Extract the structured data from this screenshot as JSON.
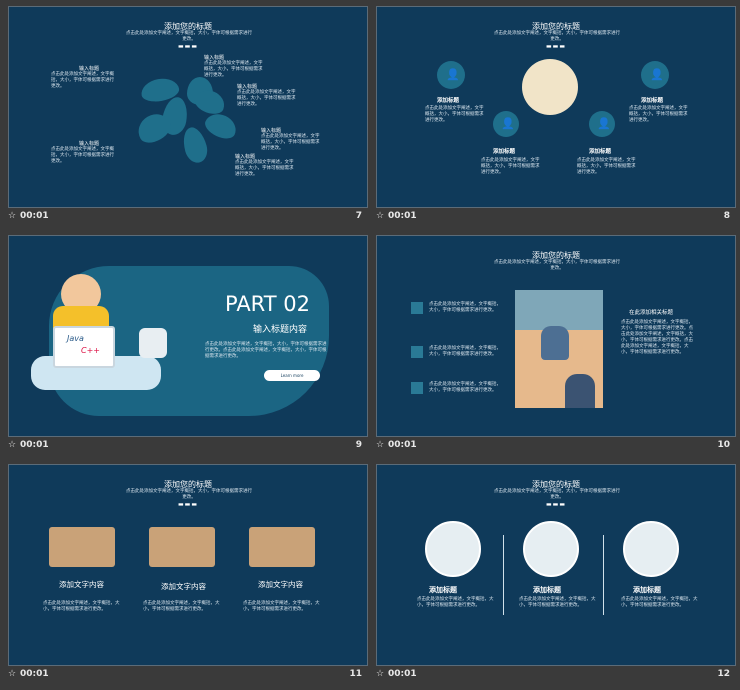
{
  "slides": [
    {
      "number": "7",
      "time": "00:01",
      "title": "添加您的标题",
      "subtitle": "点击此处添加文字阐述，文字概括，大小，字体可根据需求进行更改。",
      "items": [
        {
          "label": "输入标题",
          "desc": "点击此处添加文字阐述，文字概括，大小，字体可根据需求进行更改。"
        },
        {
          "label": "输入标题",
          "desc": "点击此处添加文字阐述，文字概括，大小，字体可根据需求进行更改。"
        },
        {
          "label": "输入标题",
          "desc": "点击此处添加文字阐述，文字概括，大小，字体可根据需求进行更改。"
        },
        {
          "label": "输入标题",
          "desc": "点击此处添加文字阐述，文字概括，大小，字体可根据需求进行更改。"
        },
        {
          "label": "输入标题",
          "desc": "点击此处添加文字阐述，文字概括，大小，字体可根据需求进行更改。"
        },
        {
          "label": "输入标题",
          "desc": "点击此处添加文字阐述，文字概括，大小，字体可根据需求进行更改。"
        }
      ]
    },
    {
      "number": "8",
      "time": "00:01",
      "title": "添加您的标题",
      "subtitle": "点击此处添加文字阐述，文字概括，大小，字体可根据需求进行更改。",
      "items": [
        {
          "label": "添加标题",
          "desc": "点击此处添加文字阐述，文字概括，大小，字体可根据需求进行更改。"
        },
        {
          "label": "添加标题",
          "desc": "点击此处添加文字阐述，文字概括，大小，字体可根据需求进行更改。"
        },
        {
          "label": "添加标题",
          "desc": "点击此处添加文字阐述，文字概括，大小，字体可根据需求进行更改。"
        },
        {
          "label": "添加标题",
          "desc": "点击此处添加文字阐述，文字概括，大小，字体可根据需求进行更改。"
        }
      ]
    },
    {
      "number": "9",
      "time": "00:01",
      "part": "PART 02",
      "heading": "输入标题内容",
      "desc": "点击此处添加文字阐述，文字概括，大小，字体可根据需求进行更改。点击此处添加文字阐述，文字概括，大小，字体可根据需求进行更改。",
      "button": "Learn more",
      "java": "Java",
      "cpp": "C++"
    },
    {
      "number": "10",
      "time": "00:01",
      "title": "添加您的标题",
      "subtitle": "点击此处添加文字阐述，文字概括，大小，字体可根据需求进行更改。",
      "items": [
        {
          "desc": "点击此处添加文字阐述，文字概括，大小，字体可根据需求进行更改。"
        },
        {
          "desc": "点击此处添加文字阐述，文字概括，大小，字体可根据需求进行更改。"
        },
        {
          "desc": "点击此处添加文字阐述，文字概括，大小，字体可根据需求进行更改。"
        }
      ],
      "side_title": "在此添加相关标题",
      "side_text": "点击此处添加文字阐述，文字概括，大小，字体可根据需求进行更改。点击此处添加文字阐述，文字概括，大小，字体可根据需求进行更改。点击此处添加文字阐述，文字概括，大小，字体可根据需求进行更改。"
    },
    {
      "number": "11",
      "time": "00:01",
      "title": "添加您的标题",
      "subtitle": "点击此处添加文字阐述，文字概括，大小，字体可根据需求进行更改。",
      "items": [
        {
          "label": "添加文字内容",
          "desc": "点击此处添加文字阐述，文字概括，大小，字体可根据需求进行更改。"
        },
        {
          "label": "添加文字内容",
          "desc": "点击此处添加文字阐述，文字概括，大小，字体可根据需求进行更改。"
        },
        {
          "label": "添加文字内容",
          "desc": "点击此处添加文字阐述，文字概括，大小，字体可根据需求进行更改。"
        }
      ]
    },
    {
      "number": "12",
      "time": "00:01",
      "title": "添加您的标题",
      "subtitle": "点击此处添加文字阐述，文字概括，大小，字体可根据需求进行更改。",
      "items": [
        {
          "label": "添加标题",
          "desc": "点击此处添加文字阐述，文字概括，大小，字体可根据需求进行更改。"
        },
        {
          "label": "添加标题",
          "desc": "点击此处添加文字阐述，文字概括，大小，字体可根据需求进行更改。"
        },
        {
          "label": "添加标题",
          "desc": "点击此处添加文字阐述，文字概括，大小，字体可根据需求进行更改。"
        }
      ]
    }
  ],
  "star_icon": "star-icon",
  "colors": {
    "slide_bg": "#0f3a5a",
    "accent": "#1f6f8b",
    "background": "#3a3a3a"
  }
}
